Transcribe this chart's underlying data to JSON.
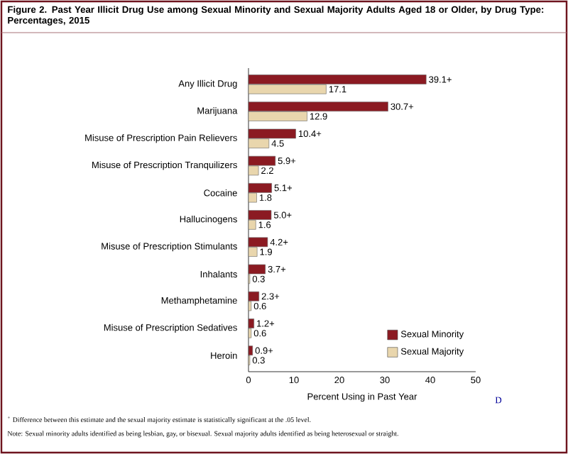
{
  "chart_data": {
    "type": "bar",
    "orientation": "horizontal",
    "title": "Figure 2. Past Year Illicit Drug Use among Sexual Minority and Sexual Majority Adults Aged 18 or Older, by Drug Type: Percentages, 2015",
    "xlabel": "Percent Using in Past Year",
    "categories": [
      "Any Illicit Drug",
      "Marijuana",
      "Misuse of Prescription Pain Relievers",
      "Misuse of Prescription Tranquilizers",
      "Cocaine",
      "Hallucinogens",
      "Misuse of Prescription Stimulants",
      "Inhalants",
      "Methamphetamine",
      "Misuse of Prescription Sedatives",
      "Heroin"
    ],
    "series": [
      {
        "name": "Sexual Minority",
        "color": "#8b1a22",
        "values": [
          39.1,
          30.7,
          10.4,
          5.9,
          5.1,
          5.0,
          4.2,
          3.7,
          2.3,
          1.2,
          0.9
        ],
        "value_labels": [
          "39.1+",
          "30.7+",
          "10.4+",
          "5.9+",
          "5.1+",
          "5.0+",
          "4.2+",
          "3.7+",
          "2.3+",
          "1.2+",
          "0.9+"
        ]
      },
      {
        "name": "Sexual Majority",
        "color": "#e9d6ad",
        "values": [
          17.1,
          12.9,
          4.5,
          2.2,
          1.8,
          1.6,
          1.9,
          0.3,
          0.6,
          0.6,
          0.3
        ],
        "value_labels": [
          "17.1",
          "12.9",
          "4.5",
          "2.2",
          "1.8",
          "1.6",
          "1.9",
          "0.3",
          "0.6",
          "0.6",
          "0.3"
        ]
      }
    ],
    "xlim": [
      0,
      50
    ],
    "xticks": [
      0,
      10,
      20,
      30,
      40,
      50
    ],
    "legend": "bottom right",
    "grid": false,
    "annotations": [
      "$^{+}$ Difference between this estimate and the sexual majority estimate is statistically significant at the .05 level.",
      "Note: Sexual minority adults identified as being lesbian, gay, or bisexual. Sexual majority adults identified as being heterosexual or straight.",
      "D"
    ]
  }
}
